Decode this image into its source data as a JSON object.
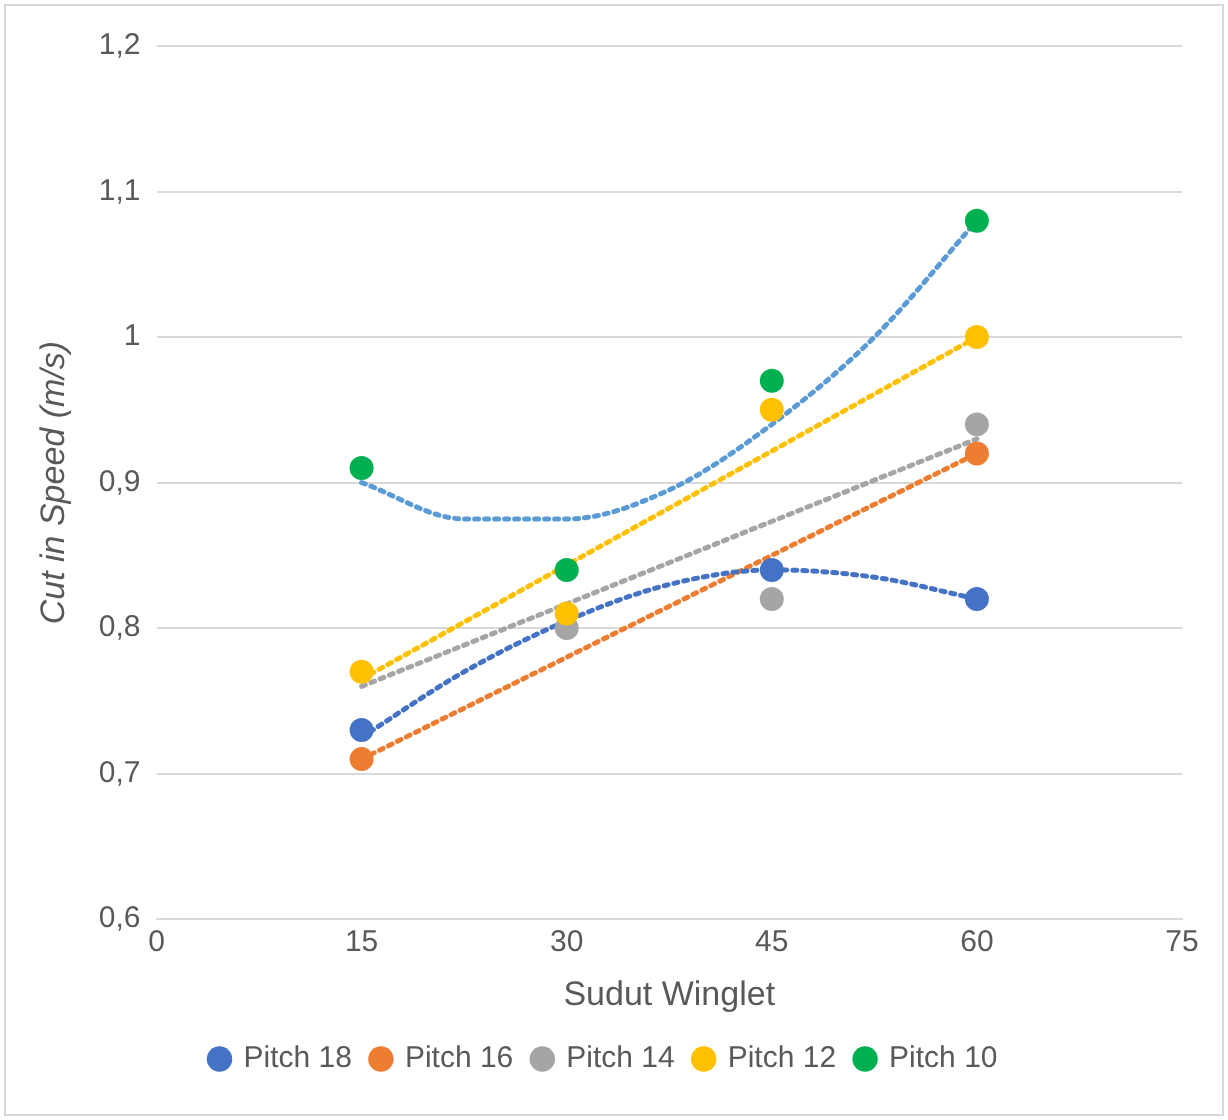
{
  "chart_data": {
    "type": "scatter",
    "xlabel": "Sudut Winglet",
    "ylabel": "Cut in Speed (m/s)",
    "x": [
      15,
      30,
      45,
      60
    ],
    "xlim": [
      0,
      75
    ],
    "xticks": [
      0,
      15,
      30,
      45,
      60,
      75
    ],
    "ylim": [
      0.6,
      1.2
    ],
    "yticks": [
      {
        "value": 0.6,
        "label": "0,6"
      },
      {
        "value": 0.7,
        "label": "0,7"
      },
      {
        "value": 0.8,
        "label": "0,8"
      },
      {
        "value": 0.9,
        "label": "0,9"
      },
      {
        "value": 1,
        "label": "1"
      },
      {
        "value": 1.1,
        "label": "1,1"
      },
      {
        "value": 1.2,
        "label": "1,2"
      }
    ],
    "grid": "y",
    "legend": "bottom",
    "marker": "circle",
    "series": [
      {
        "name": "Pitch 18",
        "color": "#4472c4",
        "values": [
          0.73,
          null,
          0.84,
          0.82
        ]
      },
      {
        "name": "Pitch 16",
        "color": "#ed7d31",
        "values": [
          0.71,
          null,
          null,
          0.92
        ]
      },
      {
        "name": "Pitch 14",
        "color": "#a5a5a5",
        "values": [
          null,
          0.8,
          0.82,
          0.94
        ]
      },
      {
        "name": "Pitch 12",
        "color": "#ffc000",
        "values": [
          0.77,
          0.81,
          0.95,
          1.0
        ]
      },
      {
        "name": "Pitch 10",
        "color": "#00b050",
        "values": [
          0.91,
          0.84,
          0.97,
          1.08
        ]
      },
      {
        "type": "line",
        "color": "#4472c4",
        "line_style": "dotted",
        "marker": "none",
        "x": [
          15,
          22.5,
          30,
          37.5,
          45,
          52.5,
          60
        ],
        "values": [
          0.725,
          0.77,
          0.805,
          0.83,
          0.84,
          0.835,
          0.82
        ]
      },
      {
        "type": "line",
        "color": "#ed7d31",
        "line_style": "dotted",
        "marker": "none",
        "x": [
          15,
          60
        ],
        "values": [
          0.71,
          0.92
        ]
      },
      {
        "type": "line",
        "color": "#a5a5a5",
        "line_style": "dotted",
        "marker": "none",
        "x": [
          15,
          60
        ],
        "values": [
          0.76,
          0.93
        ]
      },
      {
        "type": "line",
        "color": "#ffc000",
        "line_style": "dotted",
        "marker": "none",
        "x": [
          15,
          60
        ],
        "values": [
          0.765,
          1.0
        ]
      },
      {
        "type": "line",
        "color": "#5b9bd5",
        "line_style": "dotted",
        "marker": "none",
        "x": [
          15,
          22.5,
          30,
          37.5,
          45,
          52.5,
          60
        ],
        "values": [
          0.9,
          0.875,
          0.875,
          0.895,
          0.94,
          1.0,
          1.08
        ]
      }
    ]
  }
}
